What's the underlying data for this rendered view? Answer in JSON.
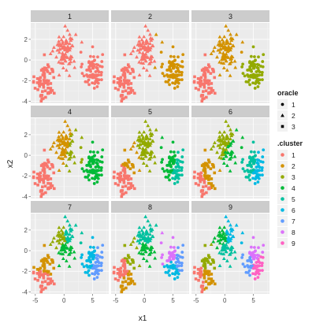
{
  "chart_data": {
    "type": "scatter",
    "facet_rows": 3,
    "facet_cols": 3,
    "panels": [
      {
        "label": "1",
        "k": 1
      },
      {
        "label": "2",
        "k": 2
      },
      {
        "label": "3",
        "k": 3
      },
      {
        "label": "4",
        "k": 4
      },
      {
        "label": "5",
        "k": 5
      },
      {
        "label": "6",
        "k": 6
      },
      {
        "label": "7",
        "k": 7
      },
      {
        "label": "8",
        "k": 8
      },
      {
        "label": "9",
        "k": 9
      }
    ],
    "xlabel": "x1",
    "ylabel": "x2",
    "xlim": [
      -5.8,
      7.8
    ],
    "ylim": [
      -4.2,
      3.6
    ],
    "xticks": [
      -5,
      0,
      5
    ],
    "xtick_labels": [
      "-5",
      "0",
      "5"
    ],
    "yticks": [
      -4,
      -2,
      0,
      2
    ],
    "ytick_labels": [
      "-4",
      "-2",
      "0",
      "2"
    ],
    "oracle_groups": [
      {
        "name": "1",
        "shape": "circle",
        "center": [
          5.0,
          -1.0
        ],
        "spread": [
          0.85,
          0.9
        ],
        "n": 80
      },
      {
        "name": "2",
        "shape": "triangle",
        "center": [
          0.2,
          1.0
        ],
        "spread": [
          0.9,
          0.95
        ],
        "n": 90
      },
      {
        "name": "3",
        "shape": "square",
        "center": [
          -3.3,
          -2.2
        ],
        "spread": [
          0.9,
          1.0
        ],
        "n": 70
      }
    ],
    "legend": {
      "oracle": {
        "title": "oracle",
        "items": [
          {
            "label": "1",
            "shape": "circle"
          },
          {
            "label": "2",
            "shape": "triangle"
          },
          {
            "label": "3",
            "shape": "square"
          }
        ]
      },
      "cluster": {
        "title": ".cluster",
        "items": [
          {
            "label": "1",
            "color": "#F8766D"
          },
          {
            "label": "2",
            "color": "#D39200"
          },
          {
            "label": "3",
            "color": "#93AA00"
          },
          {
            "label": "4",
            "color": "#00BA38"
          },
          {
            "label": "5",
            "color": "#00C19F"
          },
          {
            "label": "6",
            "color": "#00B9E3"
          },
          {
            "label": "7",
            "color": "#619CFF"
          },
          {
            "label": "8",
            "color": "#DB72FB"
          },
          {
            "label": "9",
            "color": "#FF61C3"
          }
        ]
      }
    },
    "cluster_palettes": {
      "1": [
        "#F8766D"
      ],
      "2": [
        "#F8766D",
        "#D39200"
      ],
      "3": [
        "#F8766D",
        "#D39200",
        "#93AA00"
      ],
      "4": [
        "#F8766D",
        "#D39200",
        "#93AA00",
        "#00BA38"
      ],
      "5": [
        "#F8766D",
        "#D39200",
        "#93AA00",
        "#00BA38",
        "#00C19F"
      ],
      "6": [
        "#F8766D",
        "#D39200",
        "#93AA00",
        "#00BA38",
        "#00C19F",
        "#00B9E3"
      ],
      "7": [
        "#F8766D",
        "#D39200",
        "#93AA00",
        "#00BA38",
        "#00C19F",
        "#00B9E3",
        "#619CFF"
      ],
      "8": [
        "#F8766D",
        "#D39200",
        "#93AA00",
        "#00BA38",
        "#00C19F",
        "#00B9E3",
        "#619CFF",
        "#DB72FB"
      ],
      "9": [
        "#F8766D",
        "#D39200",
        "#93AA00",
        "#00BA38",
        "#00C19F",
        "#00B9E3",
        "#619CFF",
        "#DB72FB",
        "#FF61C3"
      ]
    },
    "grid": true
  }
}
